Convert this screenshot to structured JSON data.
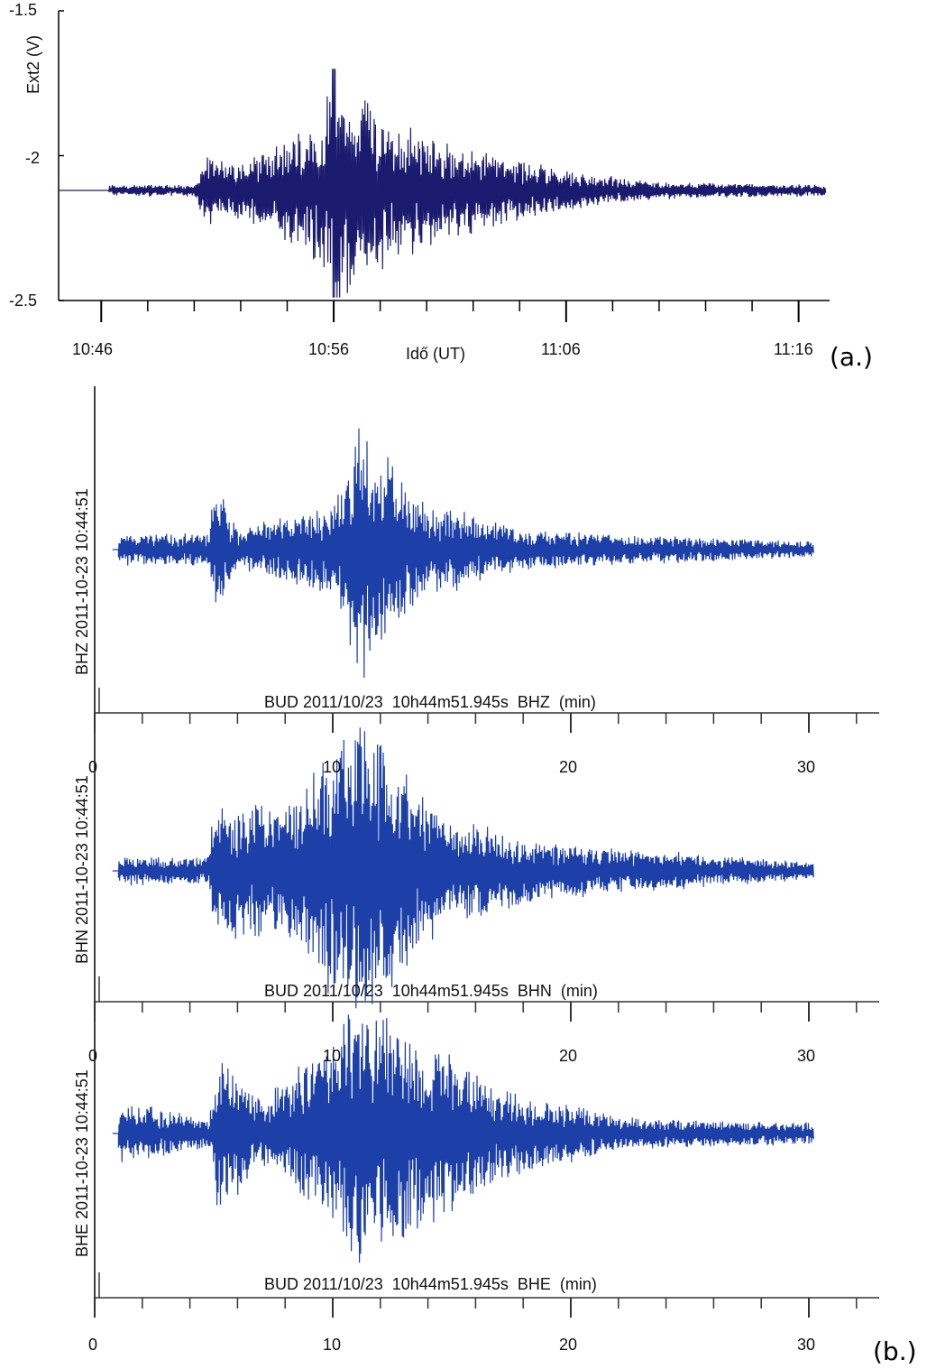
{
  "colors": {
    "trace_a": "#1a1a6e",
    "trace_b": "#1c3fa8",
    "axis": "#000000",
    "axis_b": "#333333"
  },
  "chart_data": [
    {
      "type": "line",
      "panel_label": "(a.)",
      "xlabel": "Idő (UT)",
      "ylabel": "Ext2 (V)",
      "x_ticks": [
        "10:46",
        "10:56",
        "11:06",
        "11:16"
      ],
      "x_minor_tick_interval_min": 2,
      "x_range": [
        "10:44:10",
        "11:17:20"
      ],
      "y_ticks": [
        "-1.5",
        "-2",
        "-2.5"
      ],
      "ylim": [
        -2.5,
        -1.5
      ],
      "grid": false,
      "series": [
        {
          "baseline": -2.12,
          "start": "10:44:10",
          "signal_start": "10:46:20",
          "end": "11:17:10",
          "envelope": [
            {
              "t": "10:46:20",
              "amp": 0.02
            },
            {
              "t": "10:50:00",
              "amp": 0.02
            },
            {
              "t": "10:50:30",
              "amp": 0.12
            },
            {
              "t": "10:52:00",
              "amp": 0.1
            },
            {
              "t": "10:55:00",
              "amp": 0.22
            },
            {
              "t": "10:56:00",
              "amp": 0.4
            },
            {
              "t": "10:58:30",
              "amp": 0.25
            },
            {
              "t": "11:01:00",
              "amp": 0.17
            },
            {
              "t": "11:06:00",
              "amp": 0.07
            },
            {
              "t": "11:10:00",
              "amp": 0.03
            },
            {
              "t": "11:17:10",
              "amp": 0.02
            }
          ],
          "peak_max": {
            "t": "10:56:00",
            "value": -1.7
          },
          "peak_min": {
            "t": "10:56:00",
            "value": -2.49
          }
        }
      ]
    },
    {
      "type": "line",
      "panel_label": "(b.)",
      "traces": [
        {
          "channel": "BHZ",
          "ylabel": "BHZ 2011-10-23 10:44:51",
          "caption": "BUD 2011/10/23  10h44m51.945s  BHZ  (min)",
          "x_ticks": [
            "0",
            "10",
            "20",
            "30"
          ],
          "x_unit": "min",
          "signal_start_min": 1.0,
          "end_min": 30.2,
          "envelope": [
            {
              "t": 1.0,
              "amp": 0.12
            },
            {
              "t": 4.8,
              "amp": 0.12
            },
            {
              "t": 5.0,
              "amp": 0.55
            },
            {
              "t": 6.0,
              "amp": 0.15
            },
            {
              "t": 10.0,
              "amp": 0.35
            },
            {
              "t": 11.2,
              "amp": 1.0
            },
            {
              "t": 13.5,
              "amp": 0.4
            },
            {
              "t": 18.0,
              "amp": 0.15
            },
            {
              "t": 30.2,
              "amp": 0.06
            }
          ]
        },
        {
          "channel": "BHN",
          "ylabel": "BHN 2011-10-23 10:44:51",
          "caption": "BUD 2011/10/23  10h44m51.945s  BHN  (min)",
          "x_ticks": [
            "0",
            "10",
            "20",
            "30"
          ],
          "x_unit": "min",
          "signal_start_min": 1.0,
          "end_min": 30.2,
          "envelope": [
            {
              "t": 1.0,
              "amp": 0.1
            },
            {
              "t": 4.8,
              "amp": 0.1
            },
            {
              "t": 5.0,
              "amp": 0.5
            },
            {
              "t": 8.0,
              "amp": 0.45
            },
            {
              "t": 10.5,
              "amp": 0.95
            },
            {
              "t": 11.3,
              "amp": 1.0
            },
            {
              "t": 15.0,
              "amp": 0.35
            },
            {
              "t": 20.0,
              "amp": 0.18
            },
            {
              "t": 30.2,
              "amp": 0.06
            }
          ]
        },
        {
          "channel": "BHE",
          "ylabel": "BHE 2011-10-23 10:44:51",
          "caption": "BUD 2011/10/23  10h44m51.945s  BHE  (min)",
          "x_ticks": [
            "0",
            "10",
            "20",
            "30"
          ],
          "x_unit": "min",
          "signal_start_min": 1.0,
          "end_min": 30.2,
          "envelope": [
            {
              "t": 1.0,
              "amp": 0.25
            },
            {
              "t": 4.8,
              "amp": 0.1
            },
            {
              "t": 5.2,
              "amp": 0.6
            },
            {
              "t": 7.0,
              "amp": 0.25
            },
            {
              "t": 10.0,
              "amp": 0.7
            },
            {
              "t": 11.0,
              "amp": 1.0
            },
            {
              "t": 13.5,
              "amp": 0.75
            },
            {
              "t": 17.0,
              "amp": 0.35
            },
            {
              "t": 22.0,
              "amp": 0.12
            },
            {
              "t": 30.2,
              "amp": 0.08
            }
          ]
        }
      ]
    }
  ]
}
